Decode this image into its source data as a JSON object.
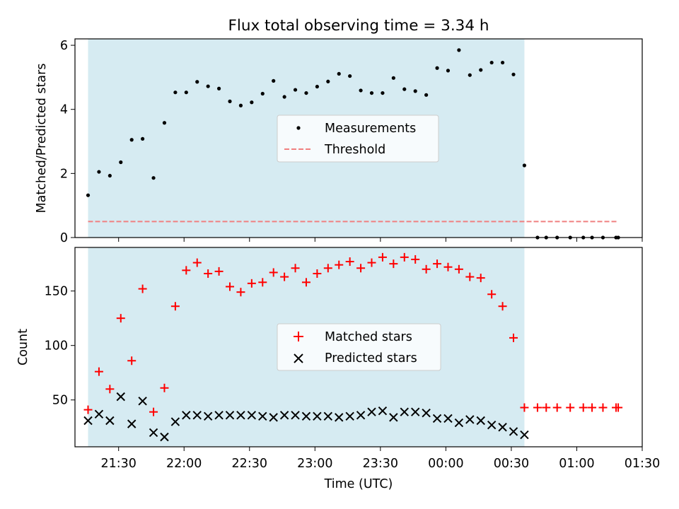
{
  "figure": {
    "title": "Flux total observing time = 3.34 h",
    "xlabel": "Time (UTC)",
    "x_ticklabels": [
      "21:30",
      "22:00",
      "22:30",
      "23:00",
      "23:30",
      "00:00",
      "00:30",
      "01:00",
      "01:30"
    ]
  },
  "colors": {
    "shade": "#add8e6",
    "measurement": "#000000",
    "threshold": "#f08080",
    "matched": "#ff0000",
    "predicted": "#000000"
  },
  "chart_data": [
    {
      "type": "scatter",
      "ylabel": "Matched/Predicted stars",
      "yticks": [
        0,
        2,
        4,
        6
      ],
      "ylim": [
        0,
        6.2
      ],
      "xlim": [
        "21:10",
        "01:30"
      ],
      "shaded_interval": [
        "21:16",
        "00:36"
      ],
      "legend": {
        "placement": "center",
        "entries": [
          "Measurements",
          "Threshold"
        ]
      },
      "threshold": {
        "name": "Threshold",
        "value": 0.5,
        "x_from": "21:16",
        "x_to": "01:19"
      },
      "series": [
        {
          "name": "Measurements",
          "marker": "dot",
          "points": [
            [
              "21:16",
              1.32
            ],
            [
              "21:21",
              2.05
            ],
            [
              "21:26",
              1.93
            ],
            [
              "21:31",
              2.35
            ],
            [
              "21:36",
              3.05
            ],
            [
              "21:41",
              3.08
            ],
            [
              "21:46",
              1.86
            ],
            [
              "21:51",
              3.58
            ],
            [
              "21:56",
              4.53
            ],
            [
              "22:01",
              4.53
            ],
            [
              "22:06",
              4.86
            ],
            [
              "22:11",
              4.72
            ],
            [
              "22:16",
              4.65
            ],
            [
              "22:21",
              4.25
            ],
            [
              "22:26",
              4.12
            ],
            [
              "22:31",
              4.22
            ],
            [
              "22:36",
              4.49
            ],
            [
              "22:41",
              4.89
            ],
            [
              "22:46",
              4.39
            ],
            [
              "22:51",
              4.61
            ],
            [
              "22:56",
              4.51
            ],
            [
              "23:01",
              4.71
            ],
            [
              "23:06",
              4.87
            ],
            [
              "23:11",
              5.11
            ],
            [
              "23:16",
              5.04
            ],
            [
              "23:21",
              4.59
            ],
            [
              "23:26",
              4.51
            ],
            [
              "23:31",
              4.51
            ],
            [
              "23:36",
              4.98
            ],
            [
              "23:41",
              4.63
            ],
            [
              "23:46",
              4.57
            ],
            [
              "23:51",
              4.45
            ],
            [
              "23:56",
              5.29
            ],
            [
              "00:01",
              5.21
            ],
            [
              "00:06",
              5.85
            ],
            [
              "00:11",
              5.07
            ],
            [
              "00:16",
              5.23
            ],
            [
              "00:21",
              5.46
            ],
            [
              "00:26",
              5.46
            ],
            [
              "00:31",
              5.09
            ],
            [
              "00:36",
              2.25
            ],
            [
              "00:42",
              0.0
            ],
            [
              "00:46",
              0.0
            ],
            [
              "00:51",
              0.0
            ],
            [
              "00:57",
              0.0
            ],
            [
              "01:03",
              0.0
            ],
            [
              "01:07",
              0.0
            ],
            [
              "01:12",
              0.0
            ],
            [
              "01:18",
              0.0
            ],
            [
              "01:19",
              0.0
            ]
          ]
        }
      ]
    },
    {
      "type": "scatter",
      "ylabel": "Count",
      "yticks": [
        50,
        100,
        150
      ],
      "ylim": [
        7,
        190
      ],
      "xlim": [
        "21:10",
        "01:30"
      ],
      "shaded_interval": [
        "21:16",
        "00:36"
      ],
      "legend": {
        "placement": "center",
        "entries": [
          "Matched stars",
          "Predicted stars"
        ]
      },
      "series": [
        {
          "name": "Matched stars",
          "marker": "plus",
          "points": [
            [
              "21:16",
              41
            ],
            [
              "21:21",
              76
            ],
            [
              "21:26",
              60
            ],
            [
              "21:31",
              125
            ],
            [
              "21:36",
              86
            ],
            [
              "21:41",
              152
            ],
            [
              "21:46",
              39
            ],
            [
              "21:51",
              61
            ],
            [
              "21:56",
              136
            ],
            [
              "22:01",
              169
            ],
            [
              "22:06",
              176
            ],
            [
              "22:11",
              166
            ],
            [
              "22:16",
              168
            ],
            [
              "22:21",
              154
            ],
            [
              "22:26",
              149
            ],
            [
              "22:31",
              157
            ],
            [
              "22:36",
              158
            ],
            [
              "22:41",
              167
            ],
            [
              "22:46",
              163
            ],
            [
              "22:51",
              171
            ],
            [
              "22:56",
              158
            ],
            [
              "23:01",
              166
            ],
            [
              "23:06",
              171
            ],
            [
              "23:11",
              174
            ],
            [
              "23:16",
              177
            ],
            [
              "23:21",
              171
            ],
            [
              "23:26",
              176
            ],
            [
              "23:31",
              181
            ],
            [
              "23:36",
              175
            ],
            [
              "23:41",
              181
            ],
            [
              "23:46",
              179
            ],
            [
              "23:51",
              170
            ],
            [
              "23:56",
              175
            ],
            [
              "00:01",
              172
            ],
            [
              "00:06",
              170
            ],
            [
              "00:11",
              163
            ],
            [
              "00:16",
              162
            ],
            [
              "00:21",
              147
            ],
            [
              "00:26",
              136
            ],
            [
              "00:31",
              107
            ],
            [
              "00:36",
              43
            ],
            [
              "00:42",
              43
            ],
            [
              "00:46",
              43
            ],
            [
              "00:51",
              43
            ],
            [
              "00:57",
              43
            ],
            [
              "01:03",
              43
            ],
            [
              "01:07",
              43
            ],
            [
              "01:12",
              43
            ],
            [
              "01:18",
              43
            ],
            [
              "01:19",
              43
            ]
          ]
        },
        {
          "name": "Predicted stars",
          "marker": "x",
          "points": [
            [
              "21:16",
              31
            ],
            [
              "21:21",
              37
            ],
            [
              "21:26",
              31
            ],
            [
              "21:31",
              53
            ],
            [
              "21:36",
              28
            ],
            [
              "21:41",
              49
            ],
            [
              "21:46",
              20
            ],
            [
              "21:51",
              16
            ],
            [
              "21:56",
              30
            ],
            [
              "22:01",
              36
            ],
            [
              "22:06",
              36
            ],
            [
              "22:11",
              35
            ],
            [
              "22:16",
              36
            ],
            [
              "22:21",
              36
            ],
            [
              "22:26",
              36
            ],
            [
              "22:31",
              36
            ],
            [
              "22:36",
              35
            ],
            [
              "22:41",
              34
            ],
            [
              "22:46",
              36
            ],
            [
              "22:51",
              36
            ],
            [
              "22:56",
              35
            ],
            [
              "23:01",
              35
            ],
            [
              "23:06",
              35
            ],
            [
              "23:11",
              34
            ],
            [
              "23:16",
              35
            ],
            [
              "23:21",
              36
            ],
            [
              "23:26",
              39
            ],
            [
              "23:31",
              40
            ],
            [
              "23:36",
              34
            ],
            [
              "23:41",
              39
            ],
            [
              "23:46",
              39
            ],
            [
              "23:51",
              38
            ],
            [
              "23:56",
              33
            ],
            [
              "00:01",
              33
            ],
            [
              "00:06",
              29
            ],
            [
              "00:11",
              32
            ],
            [
              "00:16",
              31
            ],
            [
              "00:21",
              27
            ],
            [
              "00:26",
              25
            ],
            [
              "00:31",
              21
            ],
            [
              "00:36",
              18
            ]
          ]
        }
      ]
    }
  ]
}
